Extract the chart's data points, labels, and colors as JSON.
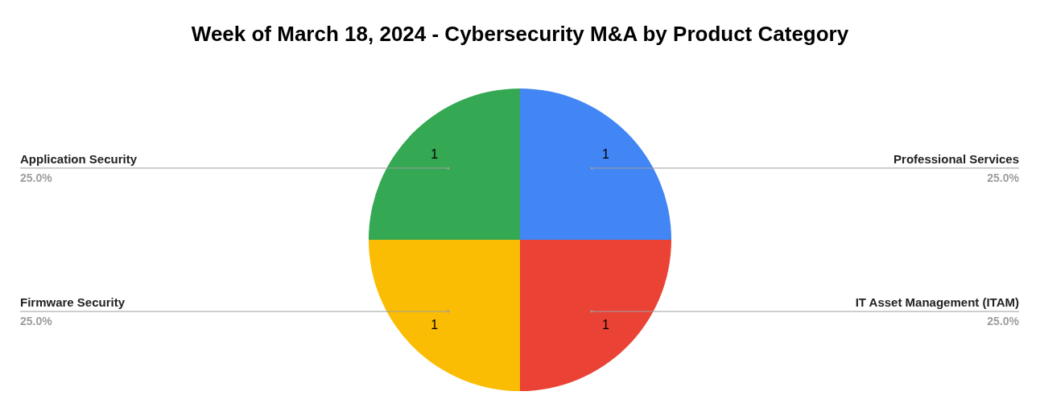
{
  "chart_data": {
    "type": "pie",
    "title": "Week of March 18, 2024 - Cybersecurity M&A by Product Category",
    "categories": [
      "Professional Services",
      "IT Asset Management (ITAM)",
      "Firmware Security",
      "Application Security"
    ],
    "values": [
      1,
      1,
      1,
      1
    ],
    "colors": [
      "#4285f4",
      "#ea4335",
      "#fbbc04",
      "#34a853"
    ],
    "data_labels": true,
    "annotations": [
      "25.0%",
      "25.0%",
      "25.0%",
      "25.0%"
    ]
  }
}
